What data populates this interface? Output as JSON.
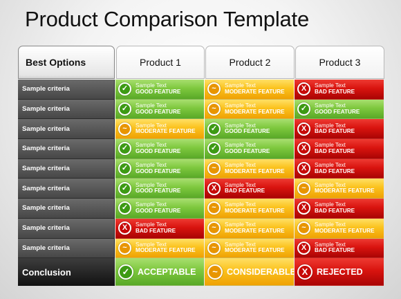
{
  "title": "Product Comparison Template",
  "header": {
    "best_options": "Best Options",
    "products": [
      "Product 1",
      "Product 2",
      "Product 3"
    ]
  },
  "icons": {
    "good": "check-icon",
    "moderate": "tilde-icon",
    "bad": "x-icon"
  },
  "colors": {
    "good": "#7ec83e",
    "moderate": "#fbc21d",
    "bad": "#d9140f",
    "criteria": "#555555"
  },
  "rows": [
    {
      "criteria": "Sample criteria",
      "cells": [
        {
          "status": "good",
          "line1": "Sample Text",
          "line2": "GOOD FEATURE"
        },
        {
          "status": "moderate",
          "line1": "Sample Text",
          "line2": "MODERATE FEATURE"
        },
        {
          "status": "bad",
          "line1": "Sample Text",
          "line2": "BAD FEATURE"
        }
      ]
    },
    {
      "criteria": "Sample criteria",
      "cells": [
        {
          "status": "good",
          "line1": "Sample Text",
          "line2": "GOOD FEATURE"
        },
        {
          "status": "moderate",
          "line1": "Sample Text",
          "line2": "MODERATE FEATURE"
        },
        {
          "status": "good",
          "line1": "Sample Text",
          "line2": "GOOD FEATURE"
        }
      ]
    },
    {
      "criteria": "Sample criteria",
      "cells": [
        {
          "status": "moderate",
          "line1": "Sample Text",
          "line2": "MODERATE FEATURE"
        },
        {
          "status": "good",
          "line1": "Sample Text",
          "line2": "GOOD FEATURE"
        },
        {
          "status": "bad",
          "line1": "Sample Text",
          "line2": "BAD FEATURE"
        }
      ]
    },
    {
      "criteria": "Sample criteria",
      "cells": [
        {
          "status": "good",
          "line1": "Sample Text",
          "line2": "GOOD FEATURE"
        },
        {
          "status": "good",
          "line1": "Sample Text",
          "line2": "GOOD FEATURE"
        },
        {
          "status": "bad",
          "line1": "Sample Text",
          "line2": "BAD FEATURE"
        }
      ]
    },
    {
      "criteria": "Sample criteria",
      "cells": [
        {
          "status": "good",
          "line1": "Sample Text",
          "line2": "GOOD FEATURE"
        },
        {
          "status": "moderate",
          "line1": "Sample Text",
          "line2": "MODERATE FEATURE"
        },
        {
          "status": "bad",
          "line1": "Sample Text",
          "line2": "BAD FEATURE"
        }
      ]
    },
    {
      "criteria": "Sample criteria",
      "cells": [
        {
          "status": "good",
          "line1": "Sample Text",
          "line2": "GOOD FEATURE"
        },
        {
          "status": "bad",
          "line1": "Sample Text",
          "line2": "BAD FEATURE"
        },
        {
          "status": "moderate",
          "line1": "Sample Text",
          "line2": "MODERATE FEATURE"
        }
      ]
    },
    {
      "criteria": "Sample criteria",
      "cells": [
        {
          "status": "good",
          "line1": "Sample Text",
          "line2": "GOOD FEATURE"
        },
        {
          "status": "moderate",
          "line1": "Sample Text",
          "line2": "MODERATE FEATURE"
        },
        {
          "status": "bad",
          "line1": "Sample Text",
          "line2": "BAD FEATURE"
        }
      ]
    },
    {
      "criteria": "Sample criteria",
      "cells": [
        {
          "status": "bad",
          "line1": "Sample Text",
          "line2": "BAD FEATURE"
        },
        {
          "status": "moderate",
          "line1": "Sample Text",
          "line2": "MODERATE FEATURE"
        },
        {
          "status": "moderate",
          "line1": "Sample Text",
          "line2": "MODERATE FEATURE"
        }
      ]
    },
    {
      "criteria": "Sample criteria",
      "cells": [
        {
          "status": "moderate",
          "line1": "Sample Text",
          "line2": "MODERATE FEATURE"
        },
        {
          "status": "moderate",
          "line1": "Sample Text",
          "line2": "MODERATE FEATURE"
        },
        {
          "status": "bad",
          "line1": "Sample Text",
          "line2": "BAD FEATURE"
        }
      ]
    }
  ],
  "conclusion": {
    "label": "Conclusion",
    "cells": [
      {
        "status": "good",
        "verdict": "ACCEPTABLE"
      },
      {
        "status": "moderate",
        "verdict": "CONSIDERABLE"
      },
      {
        "status": "bad",
        "verdict": "REJECTED"
      }
    ]
  }
}
